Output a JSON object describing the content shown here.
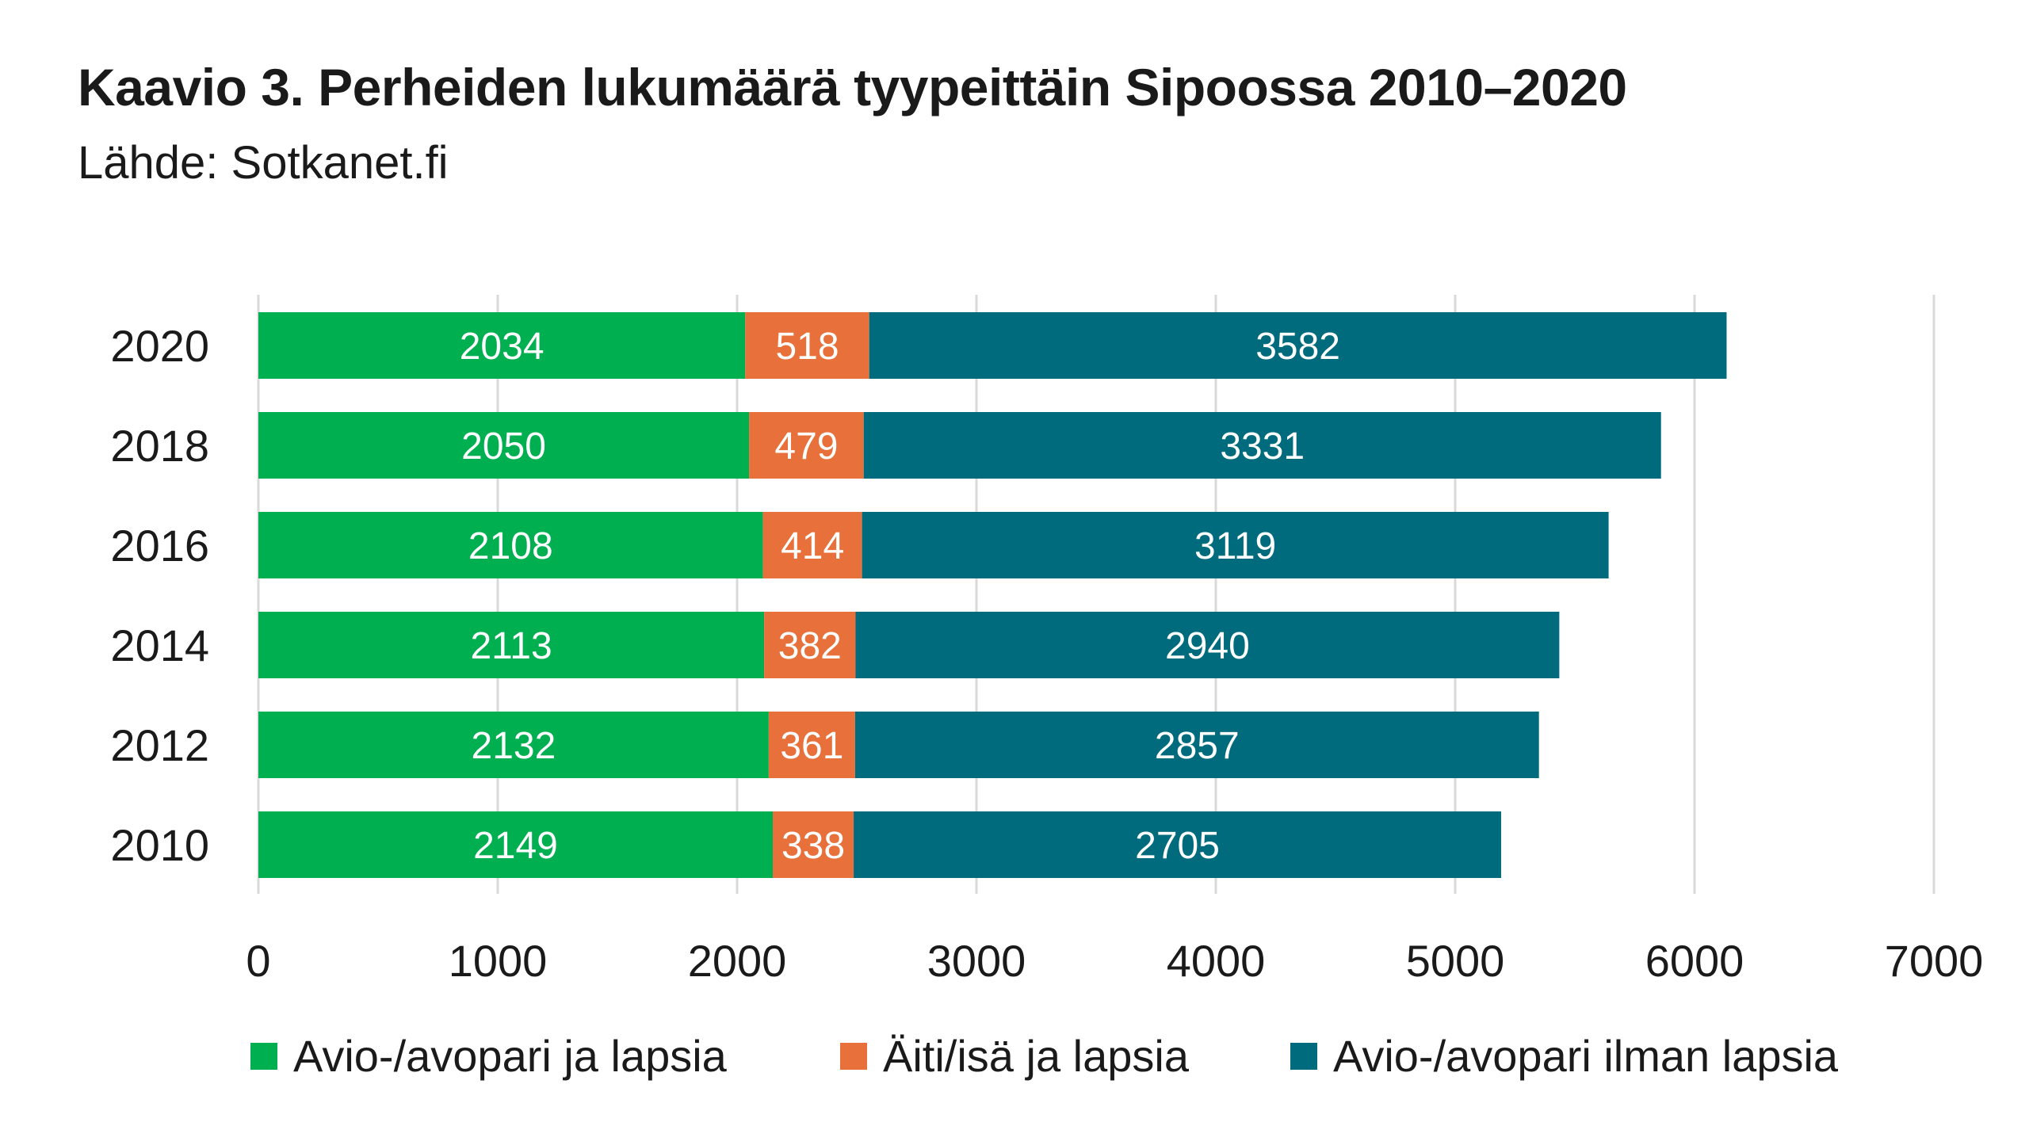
{
  "title": "Kaavio 3. Perheiden lukumäärä tyypeittäin Sipoossa 2010–2020",
  "subtitle": "Lähde: Sotkanet.fi",
  "chart_data": {
    "type": "bar",
    "orientation": "horizontal",
    "stacked": true,
    "categories": [
      "2020",
      "2018",
      "2016",
      "2014",
      "2012",
      "2010"
    ],
    "series": [
      {
        "name": "Avio-/avopari ja lapsia",
        "color": "#00B050",
        "values": [
          2034,
          2050,
          2108,
          2113,
          2132,
          2149
        ]
      },
      {
        "name": "Äiti/isä ja lapsia",
        "color": "#E8703A",
        "values": [
          518,
          479,
          414,
          382,
          361,
          338
        ]
      },
      {
        "name": "Avio-/avopari ilman lapsia",
        "color": "#006B7C",
        "values": [
          3582,
          3331,
          3119,
          2940,
          2857,
          2705
        ]
      }
    ],
    "xlim": [
      0,
      7000
    ],
    "xticks": [
      "0",
      "1000",
      "2000",
      "3000",
      "4000",
      "5000",
      "6000",
      "7000"
    ],
    "xlabel": "",
    "ylabel": "",
    "grid": "vertical",
    "legend_position": "bottom",
    "data_labels": true,
    "data_label_color": "#ffffff"
  }
}
